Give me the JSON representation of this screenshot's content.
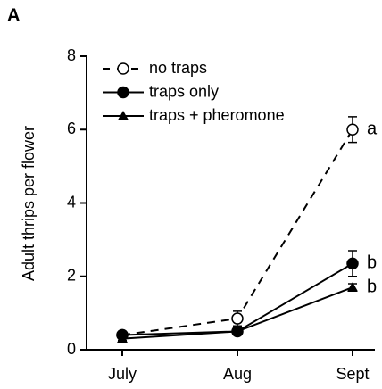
{
  "chart_data": {
    "type": "line",
    "panel_label": "A",
    "ylabel": "Adult thrips per flower",
    "categories": [
      "July",
      "Aug",
      "Sept"
    ],
    "ylim": [
      0,
      8
    ],
    "yticks": [
      0,
      2,
      4,
      6,
      8
    ],
    "legend": "top-left",
    "series": [
      {
        "name": "no traps",
        "color": "#000000",
        "marker": "open-circle",
        "dashed": true,
        "values": [
          0.4,
          0.85,
          6.0
        ],
        "errors": [
          0.1,
          0.2,
          0.35
        ],
        "annotation": "a"
      },
      {
        "name": "traps only",
        "color": "#000000",
        "marker": "circle",
        "dashed": false,
        "values": [
          0.4,
          0.5,
          2.35
        ],
        "errors": [
          0.1,
          0.1,
          0.35
        ],
        "annotation": "b"
      },
      {
        "name": "traps + pheromone",
        "color": "#000000",
        "marker": "triangle",
        "dashed": false,
        "values": [
          0.3,
          0.5,
          1.7
        ],
        "errors": [
          0.05,
          0.05,
          0.1
        ],
        "annotation": "b"
      }
    ]
  }
}
